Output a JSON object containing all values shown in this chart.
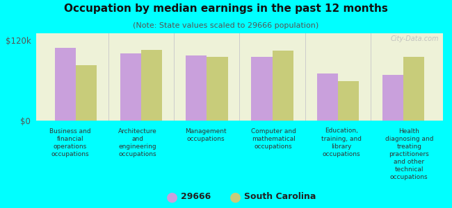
{
  "title": "Occupation by median earnings in the past 12 months",
  "subtitle": "(Note: State values scaled to 29666 population)",
  "categories": [
    "Business and\nfinancial\noperations\noccupations",
    "Architecture\nand\nengineering\noccupations",
    "Management\noccupations",
    "Computer and\nmathematical\noccupations",
    "Education,\ntraining, and\nlibrary\noccupations",
    "Health\ndiagnosing and\ntreating\npractitioners\nand other\ntechnical\noccupations"
  ],
  "values_29666": [
    108000,
    100000,
    97000,
    95000,
    70000,
    68000
  ],
  "values_sc": [
    83000,
    105000,
    95000,
    104000,
    59000,
    95000
  ],
  "color_29666": "#c9a0dc",
  "color_sc": "#c8cc7a",
  "ylim": [
    0,
    130000
  ],
  "yticks": [
    0,
    120000
  ],
  "ytick_labels": [
    "$0",
    "$120k"
  ],
  "legend_29666": "29666",
  "legend_sc": "South Carolina",
  "background_chart": "#eef2d8",
  "background_fig": "#00ffff",
  "watermark": "City-Data.com"
}
